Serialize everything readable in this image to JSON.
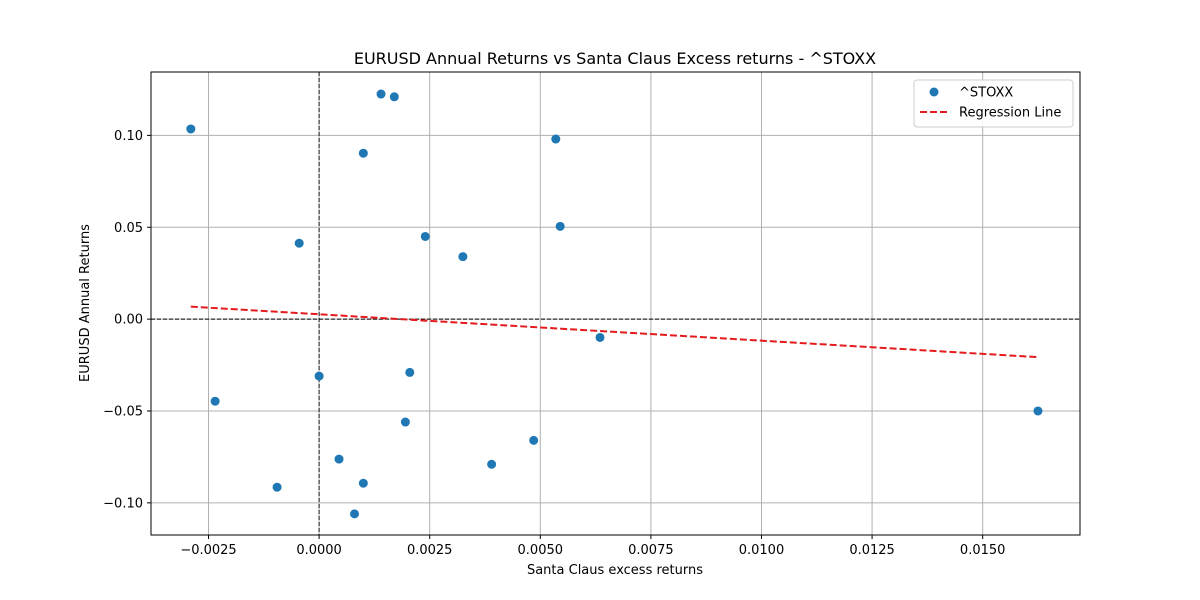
{
  "chart_data": {
    "type": "scatter",
    "title": "EURUSD Annual Returns vs Santa Claus Excess returns - ^STOXX",
    "xlabel": "Santa Claus excess returns",
    "ylabel": "EURUSD Annual Returns",
    "xlim": [
      -0.0038,
      0.0172
    ],
    "ylim": [
      -0.1175,
      0.1345
    ],
    "xticks": [
      -0.0025,
      0.0,
      0.0025,
      0.005,
      0.0075,
      0.01,
      0.0125,
      0.015
    ],
    "xtick_labels": [
      "−0.0025",
      "0.0000",
      "0.0025",
      "0.0050",
      "0.0075",
      "0.0100",
      "0.0125",
      "0.0150"
    ],
    "yticks": [
      -0.1,
      -0.05,
      0.0,
      0.05,
      0.1
    ],
    "ytick_labels": [
      "−0.10",
      "−0.05",
      "0.00",
      "0.05",
      "0.10"
    ],
    "grid": true,
    "reference_lines": {
      "x": 0,
      "y": 0
    },
    "legend": {
      "placement": "top-right",
      "entries": [
        "^STOXX",
        "Regression Line"
      ]
    },
    "series": [
      {
        "name": "^STOXX",
        "kind": "scatter",
        "color": "#1f77b4",
        "points": [
          [
            -0.0029,
            0.1035
          ],
          [
            -0.00235,
            -0.0447
          ],
          [
            -0.00095,
            -0.0915
          ],
          [
            -0.00045,
            0.0413
          ],
          [
            0.0,
            -0.031
          ],
          [
            0.00045,
            -0.0762
          ],
          [
            0.0008,
            -0.106
          ],
          [
            0.001,
            0.0903
          ],
          [
            0.001,
            -0.0893
          ],
          [
            0.0014,
            0.1225
          ],
          [
            0.0017,
            0.121
          ],
          [
            0.00195,
            -0.056
          ],
          [
            0.00205,
            -0.029
          ],
          [
            0.0024,
            0.045
          ],
          [
            0.00325,
            0.034
          ],
          [
            0.0039,
            -0.079
          ],
          [
            0.00485,
            -0.066
          ],
          [
            0.00535,
            0.098
          ],
          [
            0.00545,
            0.0505
          ],
          [
            0.00635,
            -0.01
          ],
          [
            0.01625,
            -0.05
          ]
        ]
      },
      {
        "name": "Regression Line",
        "kind": "line",
        "color": "#e41a1c",
        "dashed": true,
        "points": [
          [
            -0.0029,
            0.0068
          ],
          [
            0.01625,
            -0.0207
          ]
        ]
      }
    ]
  }
}
